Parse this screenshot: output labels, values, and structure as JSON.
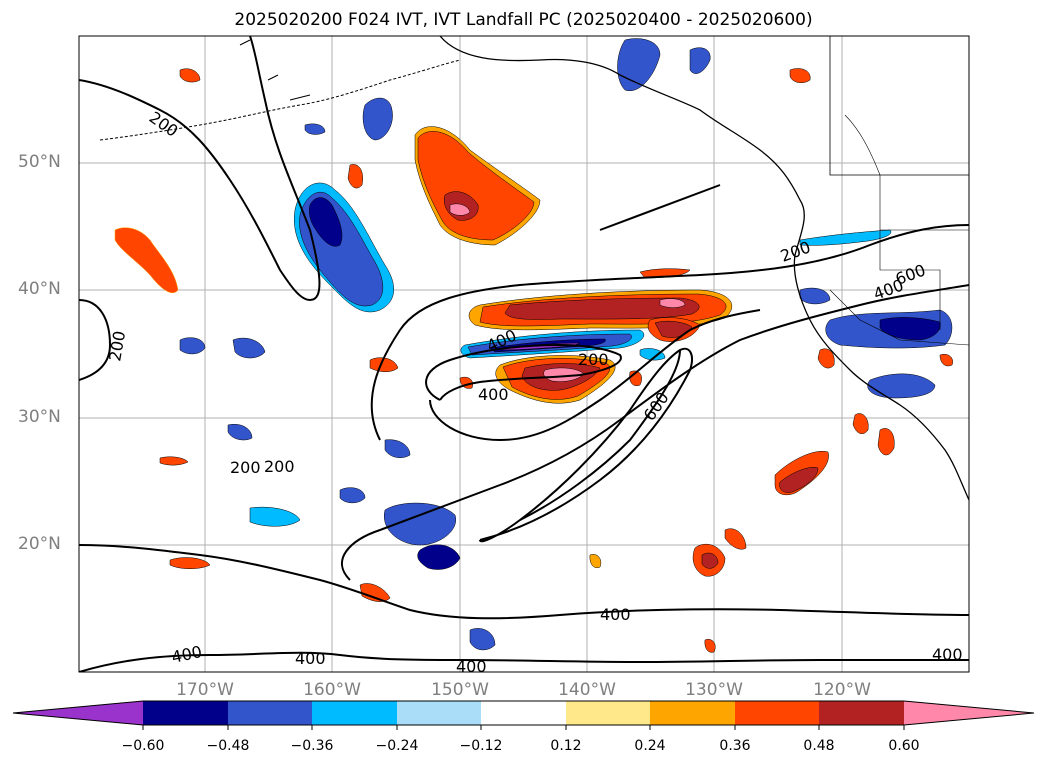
{
  "title": "2025020200 F024 IVT, IVT Landfall PC (2025020400 - 2025020600)",
  "latitude_labels": [
    "50°N",
    "40°N",
    "30°N",
    "20°N"
  ],
  "longitude_labels": [
    "170°W",
    "160°W",
    "150°W",
    "140°W",
    "130°W",
    "120°W"
  ],
  "contour_labels": [
    "200",
    "200",
    "200",
    "200",
    "200",
    "200",
    "400",
    "400",
    "400",
    "400",
    "400",
    "400",
    "400",
    "600",
    "400",
    "600"
  ],
  "colorbar": {
    "colors": [
      "#9933cc",
      "#00008b",
      "#3355cc",
      "#00bbff",
      "#aaddf8",
      "#ffffff",
      "#ffe88a",
      "#ffa500",
      "#ff4500",
      "#b22222",
      "#ff88aa"
    ],
    "tick_labels": [
      "−0.60",
      "−0.48",
      "−0.36",
      "−0.24",
      "−0.12",
      "0.12",
      "0.24",
      "0.36",
      "0.48",
      "0.60"
    ]
  }
}
